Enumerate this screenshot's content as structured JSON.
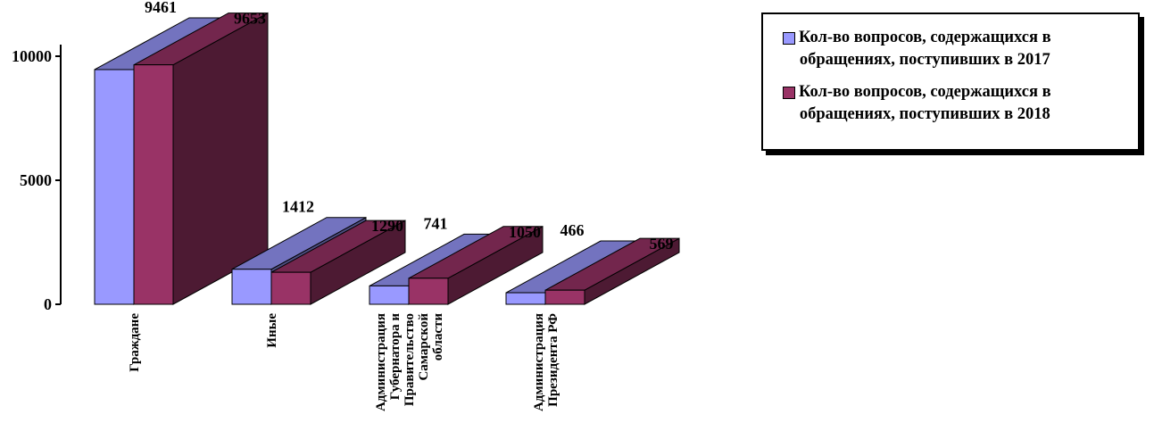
{
  "chart_data": {
    "type": "bar",
    "categories": [
      "Граждане",
      "Иные",
      "Администрация Губернатора и Правительство Самарской области",
      "Администрация Президента РФ"
    ],
    "category_lines": [
      [
        "Граждане"
      ],
      [
        "Иные"
      ],
      [
        "Администрация",
        "Губернатора и",
        "Правительство",
        "Самарской",
        "области"
      ],
      [
        "Администрация",
        "Президента РФ"
      ]
    ],
    "series": [
      {
        "name": "Кол-во вопросов, содержащихся в\nобращениях, поступивших в 2017",
        "values": [
          9461,
          1412,
          741,
          466
        ],
        "color": "#9999ff"
      },
      {
        "name": "Кол-во вопросов, содержащихся в\nобращениях, поступивших в 2018",
        "values": [
          9653,
          1290,
          1050,
          569
        ],
        "color": "#993366"
      }
    ],
    "value_labels": [
      [
        "9461",
        "1412",
        "741",
        "466"
      ],
      [
        "9653",
        "1290",
        "1050",
        "569"
      ]
    ],
    "y_ticks": [
      "0",
      "5000",
      "10000"
    ],
    "ylim": [
      0,
      10000
    ],
    "legend_position": "top-right",
    "grid": false,
    "three_d": true
  }
}
